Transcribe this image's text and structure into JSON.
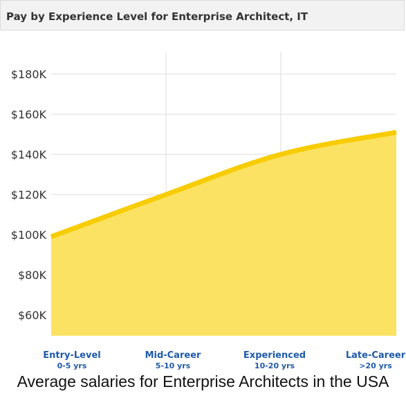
{
  "header": {
    "title": "Pay by Experience Level for Enterprise Architect, IT"
  },
  "caption": "Average salaries for Enterprise Architects in the USA",
  "colors": {
    "line": "#f7cc00",
    "fill": "#fce262",
    "grid": "#dddddd",
    "category_text": "#1f5aa8",
    "tick_text": "#333333"
  },
  "chart_data": {
    "type": "area",
    "title": "Pay by Experience Level for Enterprise Architect, IT",
    "xlabel": "",
    "ylabel": "",
    "categories": [
      "Entry-Level",
      "Mid-Career",
      "Experienced",
      "Late-Career"
    ],
    "category_sublabels": [
      "0-5 yrs",
      "5-10 yrs",
      "10-20 yrs",
      ">20 yrs"
    ],
    "values": [
      99000,
      120000,
      140000,
      151000
    ],
    "ylim": [
      50000,
      190000
    ],
    "yticks": [
      60000,
      80000,
      100000,
      120000,
      140000,
      160000,
      180000
    ],
    "ytick_labels": [
      "$60K",
      "$80K",
      "$100K",
      "$120K",
      "$140K",
      "$160K",
      "$180K"
    ],
    "grid": true,
    "legend": "none"
  }
}
